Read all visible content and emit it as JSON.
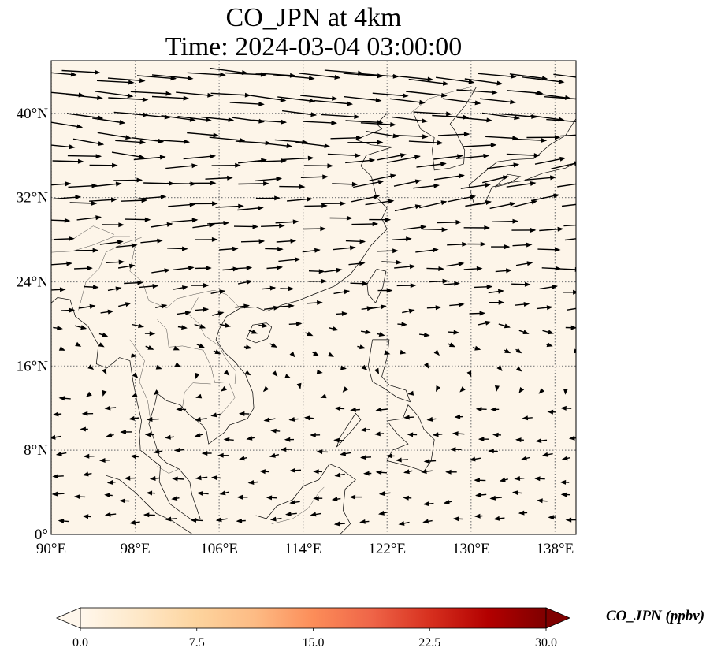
{
  "title": {
    "line1": "CO_JPN at 4km",
    "line2": "Time: 2024-03-04 03:00:00"
  },
  "map": {
    "projection": "PlateCarree",
    "lon_range": [
      90,
      140
    ],
    "lat_range": [
      0,
      45
    ],
    "background_color": "#fdf5e9",
    "gridlines": "dotted",
    "lon_ticks": [
      {
        "value": 90,
        "label": "90°E"
      },
      {
        "value": 98,
        "label": "98°E"
      },
      {
        "value": 106,
        "label": "106°E"
      },
      {
        "value": 114,
        "label": "114°E"
      },
      {
        "value": 122,
        "label": "122°E"
      },
      {
        "value": 130,
        "label": "130°E"
      },
      {
        "value": 138,
        "label": "138°E"
      }
    ],
    "lat_ticks": [
      {
        "value": 0,
        "label": "0°"
      },
      {
        "value": 8,
        "label": "8°N"
      },
      {
        "value": 16,
        "label": "16°N"
      },
      {
        "value": 24,
        "label": "24°N"
      },
      {
        "value": 32,
        "label": "32°N"
      },
      {
        "value": 40,
        "label": "40°N"
      }
    ]
  },
  "colorbar": {
    "label": "CO_JPN (ppbv)",
    "ticks": [
      "0.0",
      "7.5",
      "15.0",
      "22.5",
      "30.0"
    ],
    "range": [
      0,
      30
    ],
    "extend": "both",
    "colormap": "OrRd",
    "colors": [
      "#fff7ec",
      "#fee8c8",
      "#fdd49e",
      "#fdbb84",
      "#fc8d59",
      "#ef6548",
      "#d7301f",
      "#b30000",
      "#7f0000"
    ]
  },
  "chart_data": {
    "type": "vector-field",
    "title": "CO_JPN at 4km\nTime: 2024-03-04 03:00:00",
    "xlabel": "",
    "ylabel": "",
    "xlim": [
      90,
      140
    ],
    "ylim": [
      0,
      45
    ],
    "field_value": "CO_JPN near 0 ppbv across domain",
    "wind_regime": "westerly flow strong north of 20°N; easterly trade winds south of 14°N"
  }
}
